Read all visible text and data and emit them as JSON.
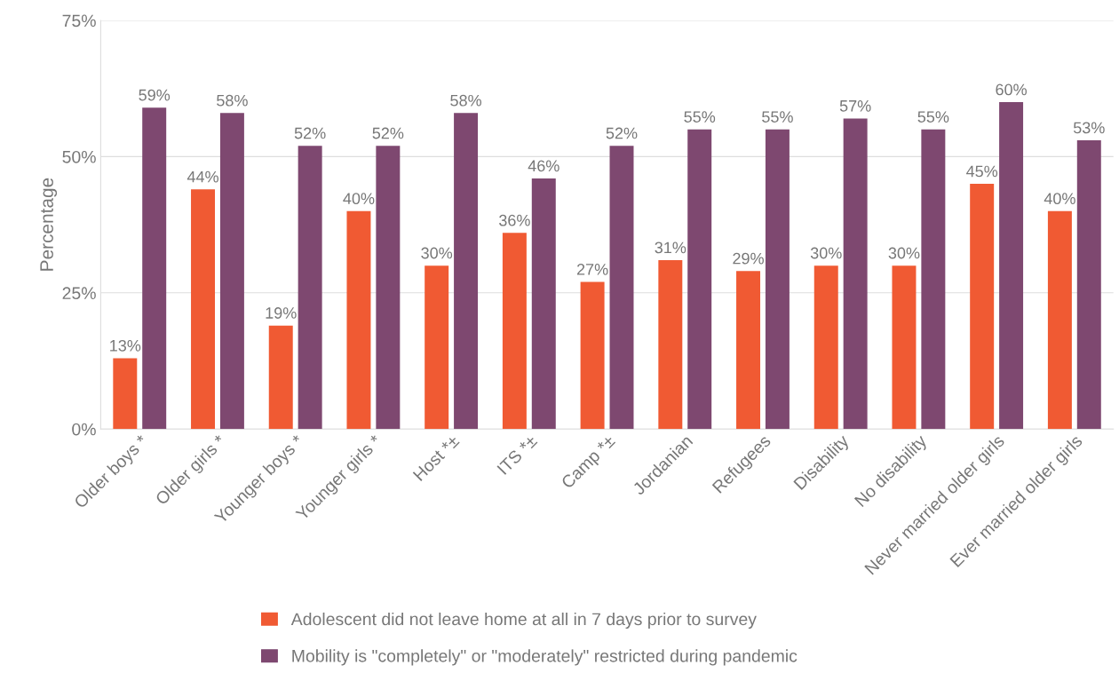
{
  "chart_data": {
    "type": "bar",
    "ylabel": "Percentage",
    "categories": [
      "Older boys *",
      "Older girls *",
      "Younger boys *",
      "Younger girls *",
      "Host *±",
      "ITS *±",
      "Camp *±",
      "Jordanian",
      "Refugees",
      "Disability",
      "No disability",
      "Never married older girls",
      "Ever married older girls"
    ],
    "series": [
      {
        "name": "Adolescent did not leave home at all in 7 days prior to survey",
        "color": "#f05a33",
        "values": [
          13,
          44,
          19,
          40,
          30,
          36,
          27,
          31,
          29,
          30,
          30,
          45,
          40
        ],
        "value_labels": [
          "13%",
          "44%",
          "19%",
          "40%",
          "30%",
          "36%",
          "27%",
          "31%",
          "29%",
          "30%",
          "30%",
          "45%",
          "40%"
        ]
      },
      {
        "name": "Mobility is \"completely\" or \"moderately\" restricted during pandemic",
        "color": "#7e4870",
        "values": [
          59,
          58,
          52,
          52,
          58,
          46,
          52,
          55,
          55,
          57,
          55,
          60,
          53
        ],
        "value_labels": [
          "59%",
          "58%",
          "52%",
          "52%",
          "58%",
          "46%",
          "52%",
          "55%",
          "55%",
          "57%",
          "55%",
          "60%",
          "53%"
        ]
      }
    ],
    "ylim": [
      0,
      75
    ],
    "yticks": [
      {
        "value": 0,
        "label": "0%"
      },
      {
        "value": 25,
        "label": "25%"
      },
      {
        "value": 50,
        "label": "50%"
      },
      {
        "value": 75,
        "label": "75%"
      }
    ],
    "grid": "y",
    "legend": "bottom"
  }
}
